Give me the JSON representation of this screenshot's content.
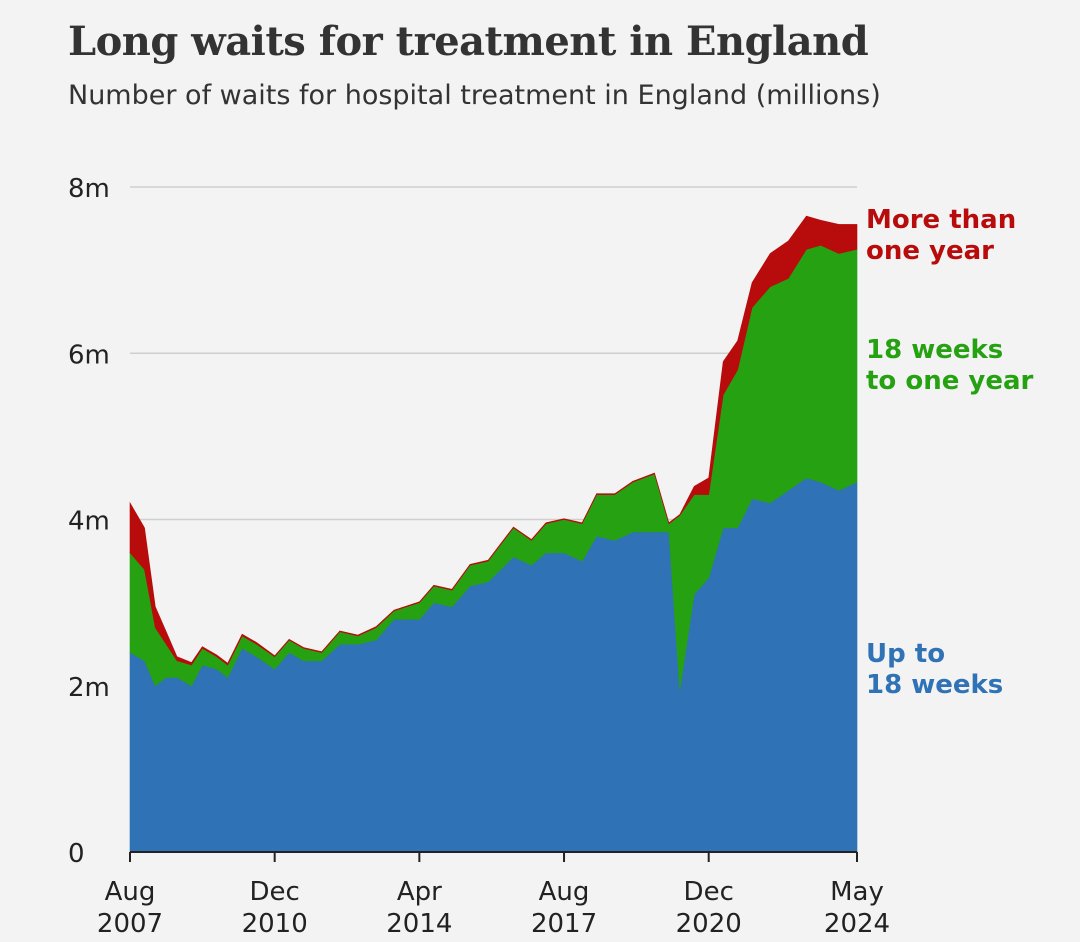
{
  "chart_data": {
    "type": "area",
    "stacked": true,
    "title": "Long waits for treatment in England",
    "subtitle": "Number of waits for hospital treatment in England (millions)",
    "ylim": [
      0,
      8
    ],
    "y_ticks": [
      {
        "value": 0,
        "label": "0"
      },
      {
        "value": 2,
        "label": "2m"
      },
      {
        "value": 4,
        "label": "4m"
      },
      {
        "value": 6,
        "label": "6m"
      },
      {
        "value": 8,
        "label": "8m"
      }
    ],
    "x_range": [
      "2007-08",
      "2024-05"
    ],
    "x_ticks": [
      {
        "date": "2007-08",
        "line1": "Aug",
        "line2": "2007"
      },
      {
        "date": "2010-12",
        "line1": "Dec",
        "line2": "2010"
      },
      {
        "date": "2014-04",
        "line1": "Apr",
        "line2": "2014"
      },
      {
        "date": "2017-08",
        "line1": "Aug",
        "line2": "2017"
      },
      {
        "date": "2020-12",
        "line1": "Dec",
        "line2": "2020"
      },
      {
        "date": "2024-05",
        "line1": "May",
        "line2": "2024"
      }
    ],
    "grid": true,
    "series": [
      {
        "name": "Up to 18 weeks",
        "label_lines": [
          "Up to",
          "18 weeks"
        ],
        "color": "#2f72b6",
        "points": [
          [
            "2007-08",
            2.4
          ],
          [
            "2007-12",
            2.3
          ],
          [
            "2008-03",
            2.0
          ],
          [
            "2008-06",
            2.1
          ],
          [
            "2008-09",
            2.1
          ],
          [
            "2009-01",
            2.0
          ],
          [
            "2009-04",
            2.25
          ],
          [
            "2009-08",
            2.2
          ],
          [
            "2009-11",
            2.1
          ],
          [
            "2010-03",
            2.45
          ],
          [
            "2010-07",
            2.35
          ],
          [
            "2010-12",
            2.2
          ],
          [
            "2011-04",
            2.4
          ],
          [
            "2011-08",
            2.3
          ],
          [
            "2012-01",
            2.3
          ],
          [
            "2012-06",
            2.5
          ],
          [
            "2012-11",
            2.5
          ],
          [
            "2013-04",
            2.55
          ],
          [
            "2013-09",
            2.8
          ],
          [
            "2014-04",
            2.8
          ],
          [
            "2014-08",
            3.0
          ],
          [
            "2015-01",
            2.95
          ],
          [
            "2015-06",
            3.2
          ],
          [
            "2015-11",
            3.25
          ],
          [
            "2016-06",
            3.55
          ],
          [
            "2016-11",
            3.45
          ],
          [
            "2017-03",
            3.6
          ],
          [
            "2017-08",
            3.6
          ],
          [
            "2018-01",
            3.5
          ],
          [
            "2018-05",
            3.8
          ],
          [
            "2018-10",
            3.75
          ],
          [
            "2019-03",
            3.85
          ],
          [
            "2019-09",
            3.85
          ],
          [
            "2020-01",
            3.85
          ],
          [
            "2020-04",
            1.95
          ],
          [
            "2020-08",
            3.1
          ],
          [
            "2020-12",
            3.3
          ],
          [
            "2021-04",
            3.9
          ],
          [
            "2021-08",
            3.9
          ],
          [
            "2021-12",
            4.25
          ],
          [
            "2022-05",
            4.2
          ],
          [
            "2022-10",
            4.35
          ],
          [
            "2023-03",
            4.5
          ],
          [
            "2023-07",
            4.45
          ],
          [
            "2023-12",
            4.35
          ],
          [
            "2024-05",
            4.45
          ]
        ]
      },
      {
        "name": "18 weeks to one year",
        "label_lines": [
          "18 weeks",
          "to one year"
        ],
        "color": "#26a112",
        "points": [
          [
            "2007-08",
            1.2
          ],
          [
            "2007-12",
            1.1
          ],
          [
            "2008-03",
            0.7
          ],
          [
            "2008-06",
            0.4
          ],
          [
            "2008-09",
            0.2
          ],
          [
            "2009-01",
            0.25
          ],
          [
            "2009-04",
            0.2
          ],
          [
            "2009-08",
            0.15
          ],
          [
            "2009-11",
            0.15
          ],
          [
            "2010-03",
            0.15
          ],
          [
            "2010-07",
            0.15
          ],
          [
            "2010-12",
            0.15
          ],
          [
            "2011-04",
            0.15
          ],
          [
            "2011-08",
            0.15
          ],
          [
            "2012-01",
            0.1
          ],
          [
            "2012-06",
            0.15
          ],
          [
            "2012-11",
            0.1
          ],
          [
            "2013-04",
            0.15
          ],
          [
            "2013-09",
            0.1
          ],
          [
            "2014-04",
            0.2
          ],
          [
            "2014-08",
            0.2
          ],
          [
            "2015-01",
            0.2
          ],
          [
            "2015-06",
            0.25
          ],
          [
            "2015-11",
            0.25
          ],
          [
            "2016-06",
            0.35
          ],
          [
            "2016-11",
            0.3
          ],
          [
            "2017-03",
            0.35
          ],
          [
            "2017-08",
            0.4
          ],
          [
            "2018-01",
            0.45
          ],
          [
            "2018-05",
            0.5
          ],
          [
            "2018-10",
            0.55
          ],
          [
            "2019-03",
            0.6
          ],
          [
            "2019-09",
            0.7
          ],
          [
            "2020-01",
            0.1
          ],
          [
            "2020-04",
            2.1
          ],
          [
            "2020-08",
            1.2
          ],
          [
            "2020-12",
            1.0
          ],
          [
            "2021-04",
            1.6
          ],
          [
            "2021-08",
            1.9
          ],
          [
            "2021-12",
            2.3
          ],
          [
            "2022-05",
            2.6
          ],
          [
            "2022-10",
            2.55
          ],
          [
            "2023-03",
            2.75
          ],
          [
            "2023-07",
            2.85
          ],
          [
            "2023-12",
            2.85
          ],
          [
            "2024-05",
            2.8
          ]
        ]
      },
      {
        "name": "More than one year",
        "label_lines": [
          "More than",
          "one year"
        ],
        "color": "#b80b0b",
        "points": [
          [
            "2007-08",
            0.6
          ],
          [
            "2007-12",
            0.5
          ],
          [
            "2008-03",
            0.25
          ],
          [
            "2008-06",
            0.15
          ],
          [
            "2008-09",
            0.05
          ],
          [
            "2009-01",
            0.03
          ],
          [
            "2009-04",
            0.02
          ],
          [
            "2009-08",
            0.02
          ],
          [
            "2009-11",
            0.02
          ],
          [
            "2010-03",
            0.02
          ],
          [
            "2010-07",
            0.02
          ],
          [
            "2010-12",
            0.01
          ],
          [
            "2011-04",
            0.01
          ],
          [
            "2011-08",
            0.01
          ],
          [
            "2012-01",
            0.01
          ],
          [
            "2012-06",
            0.01
          ],
          [
            "2012-11",
            0.01
          ],
          [
            "2013-04",
            0.01
          ],
          [
            "2013-09",
            0.01
          ],
          [
            "2014-04",
            0.01
          ],
          [
            "2014-08",
            0.01
          ],
          [
            "2015-01",
            0.01
          ],
          [
            "2015-06",
            0.01
          ],
          [
            "2015-11",
            0.01
          ],
          [
            "2016-06",
            0.01
          ],
          [
            "2016-11",
            0.01
          ],
          [
            "2017-03",
            0.01
          ],
          [
            "2017-08",
            0.01
          ],
          [
            "2018-01",
            0.01
          ],
          [
            "2018-05",
            0.01
          ],
          [
            "2018-10",
            0.01
          ],
          [
            "2019-03",
            0.01
          ],
          [
            "2019-09",
            0.01
          ],
          [
            "2020-01",
            0.01
          ],
          [
            "2020-04",
            0.01
          ],
          [
            "2020-08",
            0.1
          ],
          [
            "2020-12",
            0.2
          ],
          [
            "2021-04",
            0.4
          ],
          [
            "2021-08",
            0.35
          ],
          [
            "2021-12",
            0.3
          ],
          [
            "2022-05",
            0.4
          ],
          [
            "2022-10",
            0.45
          ],
          [
            "2023-03",
            0.4
          ],
          [
            "2023-07",
            0.3
          ],
          [
            "2023-12",
            0.35
          ],
          [
            "2024-05",
            0.3
          ]
        ]
      }
    ]
  }
}
